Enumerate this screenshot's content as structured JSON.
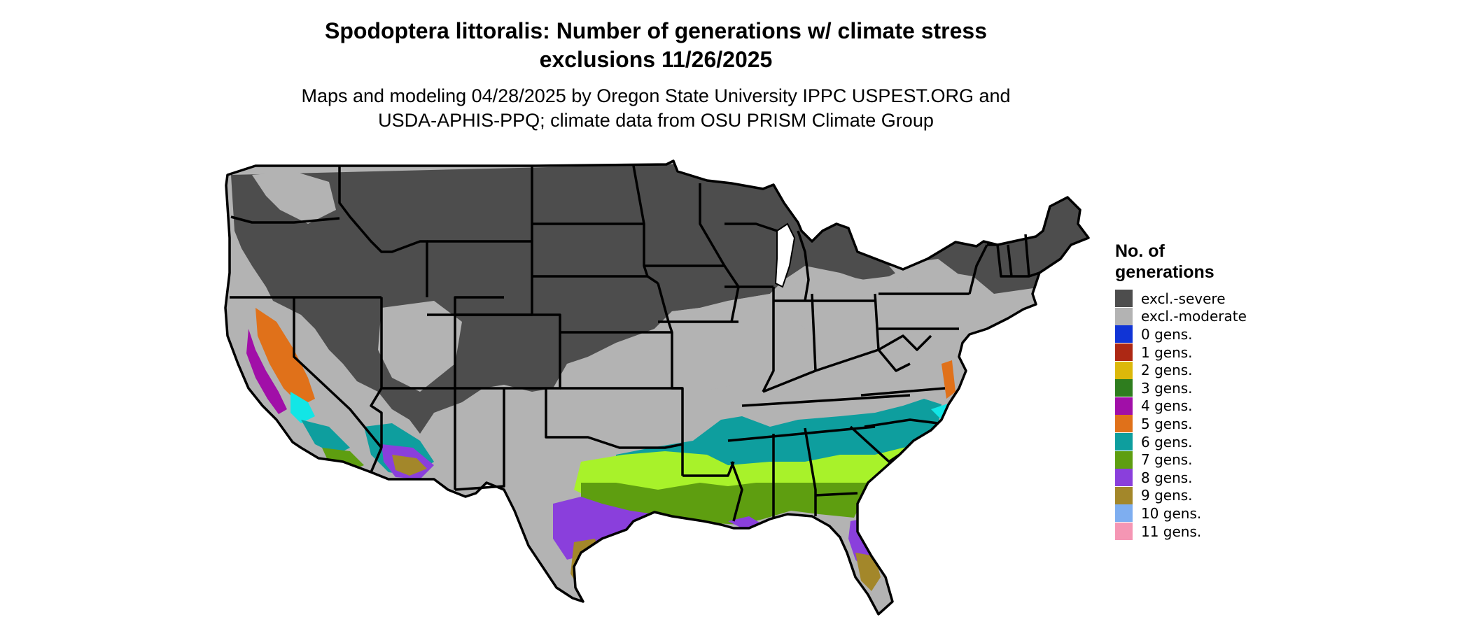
{
  "title": "Spodoptera littoralis: Number of generations w/ climate stress",
  "title_line2": "exclusions 11/26/2025",
  "subtitle": "Maps and modeling 04/28/2025 by Oregon State University IPPC USPEST.ORG and",
  "subtitle_line2": "USDA-APHIS-PPQ; climate data from OSU PRISM Climate Group",
  "legend": {
    "title_line1": "No. of",
    "title_line2": "generations",
    "items": [
      {
        "label": "excl.-severe",
        "color": "#4d4d4d"
      },
      {
        "label": "excl.-moderate",
        "color": "#b3b3b3"
      },
      {
        "label": "0 gens.",
        "color": "#1034d6"
      },
      {
        "label": "1 gens.",
        "color": "#ad2814"
      },
      {
        "label": "2 gens.",
        "color": "#dcb80a"
      },
      {
        "label": "3 gens.",
        "color": "#2e7d1e"
      },
      {
        "label": "4 gens.",
        "color": "#a10fa8"
      },
      {
        "label": "5 gens.",
        "color": "#e0711a"
      },
      {
        "label": "6 gens.",
        "color": "#0e9e9e"
      },
      {
        "label": "7 gens.",
        "color": "#5e9e10"
      },
      {
        "label": "8 gens.",
        "color": "#8a3fdc"
      },
      {
        "label": "9 gens.",
        "color": "#a3872a"
      },
      {
        "label": "10 gens.",
        "color": "#7eaef0"
      },
      {
        "label": "11 gens.",
        "color": "#f596b4"
      }
    ]
  },
  "map_colors": {
    "severe": "#4d4d4d",
    "moderate": "#b3b3b3",
    "cyan": "#12e6e6",
    "lime": "#a8f22a",
    "state_border": "#000000"
  }
}
